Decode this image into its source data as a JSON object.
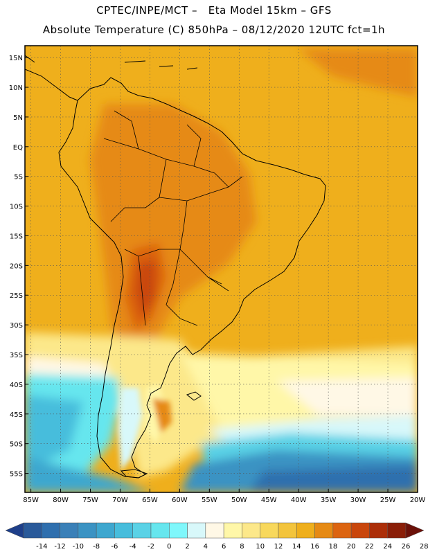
{
  "header": {
    "line1": "CPTEC/INPE/MCT –   Eta Model 15km – GFS",
    "line2": "Absolute Temperature (C) 850hPa – 08/12/2020 12UTC fct=1h"
  },
  "map": {
    "lat_labels": [
      "15N",
      "10N",
      "5N",
      "EQ",
      "5S",
      "10S",
      "15S",
      "20S",
      "25S",
      "30S",
      "35S",
      "40S",
      "45S",
      "50S",
      "55S"
    ],
    "lon_labels": [
      "85W",
      "80W",
      "75W",
      "70W",
      "65W",
      "60W",
      "55W",
      "50W",
      "45W",
      "40W",
      "35W",
      "30W",
      "25W",
      "20W"
    ],
    "lat_values": [
      15,
      10,
      5,
      0,
      -5,
      -10,
      -15,
      -20,
      -25,
      -30,
      -35,
      -40,
      -45,
      -50,
      -55
    ],
    "lon_values": [
      -85,
      -80,
      -75,
      -70,
      -65,
      -60,
      -55,
      -50,
      -45,
      -40,
      -35,
      -30,
      -25,
      -20
    ]
  },
  "colorbar": {
    "labels": [
      "-14",
      "-12",
      "-10",
      "-8",
      "-6",
      "-4",
      "-2",
      "0",
      "2",
      "4",
      "6",
      "8",
      "10",
      "12",
      "14",
      "16",
      "18",
      "20",
      "22",
      "24",
      "26",
      "28"
    ],
    "colors": [
      "#1e3f8a",
      "#2a5a9a",
      "#2f6fae",
      "#3a80b8",
      "#3b93c3",
      "#3ea7cf",
      "#47bddc",
      "#5ad2e6",
      "#66e6ee",
      "#7ff7fb",
      "#d8f8fa",
      "#fff8e6",
      "#fff7a8",
      "#fce88a",
      "#f8d85c",
      "#f3c43c",
      "#efaf1c",
      "#e68a14",
      "#dc6410",
      "#c9460c",
      "#ac2e08",
      "#8a1e08",
      "#6b1008"
    ]
  }
}
